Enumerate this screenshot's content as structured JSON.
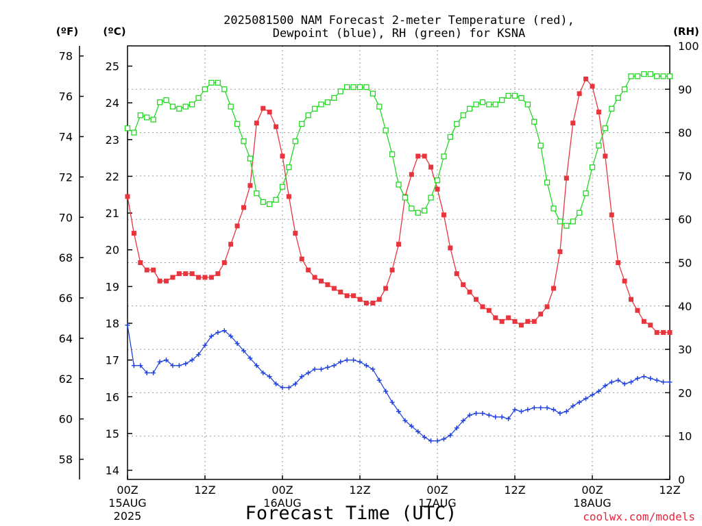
{
  "chart_data": {
    "type": "line",
    "title_lines": [
      "2025081500 NAM Forecast 2-meter Temperature (red),",
      "Dewpoint (blue), RH (green) for KSNA"
    ],
    "xlabel": "Forecast Time (UTC)",
    "credit": "coolwx.com/models",
    "x_ticks": [
      {
        "hour": 0,
        "lines": [
          "00Z",
          "15AUG",
          "2025"
        ]
      },
      {
        "hour": 12,
        "lines": [
          "12Z"
        ]
      },
      {
        "hour": 24,
        "lines": [
          "00Z",
          "16AUG"
        ]
      },
      {
        "hour": 36,
        "lines": [
          "12Z"
        ]
      },
      {
        "hour": 48,
        "lines": [
          "00Z",
          "17AUG"
        ]
      },
      {
        "hour": 60,
        "lines": [
          "12Z"
        ]
      },
      {
        "hour": 72,
        "lines": [
          "00Z",
          "18AUG"
        ]
      },
      {
        "hour": 84,
        "lines": [
          "12Z"
        ]
      }
    ],
    "xlim": [
      0,
      84
    ],
    "axes": {
      "fahrenheit": {
        "label": "(ºF)",
        "ylim": [
          57,
          78.5
        ],
        "ticks": [
          58,
          60,
          62,
          64,
          66,
          68,
          70,
          72,
          74,
          76,
          78
        ]
      },
      "celsius": {
        "label": "(ºC)",
        "ylim": [
          13.75,
          25.55
        ],
        "ticks": [
          14,
          15,
          16,
          17,
          18,
          19,
          20,
          21,
          22,
          23,
          24,
          25
        ]
      },
      "rh": {
        "label": "(RH)",
        "ylim": [
          0,
          100
        ],
        "ticks": [
          0,
          10,
          20,
          30,
          40,
          50,
          60,
          70,
          80,
          90,
          100
        ]
      }
    },
    "grid": true,
    "colors": {
      "temperature": "#e8343c",
      "dewpoint": "#2244dd",
      "rh": "#22d822"
    },
    "series": [
      {
        "key": "temperature",
        "name": "2-meter Temperature",
        "units": "°C",
        "hours": [
          0,
          1,
          2,
          3,
          4,
          5,
          6,
          7,
          8,
          9,
          10,
          11,
          12,
          13,
          14,
          15,
          16,
          17,
          18,
          19,
          20,
          21,
          22,
          23,
          24,
          25,
          26,
          27,
          28,
          29,
          30,
          31,
          32,
          33,
          34,
          35,
          36,
          37,
          38,
          39,
          40,
          41,
          42,
          43,
          44,
          45,
          46,
          47,
          48,
          49,
          50,
          51,
          52,
          53,
          54,
          55,
          56,
          57,
          58,
          59,
          60,
          61,
          62,
          63,
          64,
          65,
          66,
          67,
          68,
          69,
          70,
          71,
          72,
          73,
          74,
          75,
          76,
          77,
          78,
          79,
          80,
          81,
          82,
          83,
          84
        ],
        "values": [
          21.45,
          20.45,
          19.65,
          19.45,
          19.45,
          19.15,
          19.15,
          19.25,
          19.35,
          19.35,
          19.35,
          19.25,
          19.25,
          19.25,
          19.35,
          19.65,
          20.15,
          20.65,
          21.15,
          21.75,
          23.45,
          23.85,
          23.75,
          23.35,
          22.55,
          21.45,
          20.45,
          19.75,
          19.45,
          19.25,
          19.15,
          19.05,
          18.95,
          18.85,
          18.75,
          18.75,
          18.65,
          18.55,
          18.55,
          18.65,
          18.95,
          19.45,
          20.15,
          21.45,
          22.05,
          22.55,
          22.55,
          22.25,
          21.65,
          20.95,
          20.05,
          19.35,
          19.05,
          18.85,
          18.65,
          18.45,
          18.35,
          18.15,
          18.05,
          18.15,
          18.05,
          17.95,
          18.05,
          18.05,
          18.25,
          18.45,
          18.95,
          19.95,
          21.95,
          23.45,
          24.25,
          24.65,
          24.45,
          23.75,
          22.55,
          20.95,
          19.65,
          19.15,
          18.65,
          18.35,
          18.05,
          17.95,
          17.75,
          17.75,
          17.75
        ]
      },
      {
        "key": "dewpoint",
        "name": "Dewpoint",
        "units": "°C",
        "hours": [
          0,
          1,
          2,
          3,
          4,
          5,
          6,
          7,
          8,
          9,
          10,
          11,
          12,
          13,
          14,
          15,
          16,
          17,
          18,
          19,
          20,
          21,
          22,
          23,
          24,
          25,
          26,
          27,
          28,
          29,
          30,
          31,
          32,
          33,
          34,
          35,
          36,
          37,
          38,
          39,
          40,
          41,
          42,
          43,
          44,
          45,
          46,
          47,
          48,
          49,
          50,
          51,
          52,
          53,
          54,
          55,
          56,
          57,
          58,
          59,
          60,
          61,
          62,
          63,
          64,
          65,
          66,
          67,
          68,
          69,
          70,
          71,
          72,
          73,
          74,
          75,
          76,
          77,
          78,
          79,
          80,
          81,
          82,
          83,
          84
        ],
        "values": [
          17.95,
          16.85,
          16.85,
          16.65,
          16.65,
          16.95,
          17.0,
          16.85,
          16.85,
          16.9,
          17.0,
          17.15,
          17.4,
          17.65,
          17.75,
          17.8,
          17.65,
          17.45,
          17.25,
          17.05,
          16.85,
          16.65,
          16.55,
          16.35,
          16.25,
          16.25,
          16.35,
          16.55,
          16.65,
          16.75,
          16.75,
          16.8,
          16.85,
          16.95,
          17.0,
          17.0,
          16.95,
          16.85,
          16.75,
          16.45,
          16.15,
          15.85,
          15.6,
          15.35,
          15.2,
          15.05,
          14.9,
          14.8,
          14.8,
          14.85,
          14.95,
          15.15,
          15.35,
          15.5,
          15.55,
          15.55,
          15.5,
          15.45,
          15.45,
          15.4,
          15.65,
          15.6,
          15.65,
          15.7,
          15.7,
          15.7,
          15.65,
          15.55,
          15.6,
          15.75,
          15.85,
          15.95,
          16.05,
          16.15,
          16.3,
          16.4,
          16.45,
          16.35,
          16.4,
          16.5,
          16.55,
          16.5,
          16.45,
          16.4,
          16.4
        ]
      },
      {
        "key": "rh",
        "name": "RH",
        "units": "%",
        "hours": [
          0,
          1,
          2,
          3,
          4,
          5,
          6,
          7,
          8,
          9,
          10,
          11,
          12,
          13,
          14,
          15,
          16,
          17,
          18,
          19,
          20,
          21,
          22,
          23,
          24,
          25,
          26,
          27,
          28,
          29,
          30,
          31,
          32,
          33,
          34,
          35,
          36,
          37,
          38,
          39,
          40,
          41,
          42,
          43,
          44,
          45,
          46,
          47,
          48,
          49,
          50,
          51,
          52,
          53,
          54,
          55,
          56,
          57,
          58,
          59,
          60,
          61,
          62,
          63,
          64,
          65,
          66,
          67,
          68,
          69,
          70,
          71,
          72,
          73,
          74,
          75,
          76,
          77,
          78,
          79,
          80,
          81,
          82,
          83,
          84
        ],
        "values": [
          81,
          80,
          84,
          83.5,
          83,
          87,
          87.5,
          86,
          85.5,
          86,
          86.5,
          88,
          90,
          91.5,
          91.5,
          90,
          86,
          82,
          78,
          74,
          66,
          64,
          63.5,
          64.5,
          67.5,
          72,
          78,
          82,
          84,
          85.5,
          86.5,
          87,
          88,
          89.5,
          90.5,
          90.5,
          90.5,
          90.5,
          89,
          86,
          80.5,
          75,
          68,
          65,
          62.5,
          61.5,
          62,
          65,
          69,
          74.5,
          79,
          82,
          84,
          85.5,
          86.5,
          87,
          86.5,
          86.5,
          87.5,
          88.5,
          88.5,
          88,
          86.5,
          82.5,
          77,
          68.5,
          62.5,
          59.5,
          58.5,
          59.5,
          61.5,
          66,
          72,
          77,
          81,
          85.5,
          88,
          90,
          93,
          93,
          93.5,
          93.5,
          93,
          93,
          93
        ]
      }
    ]
  }
}
